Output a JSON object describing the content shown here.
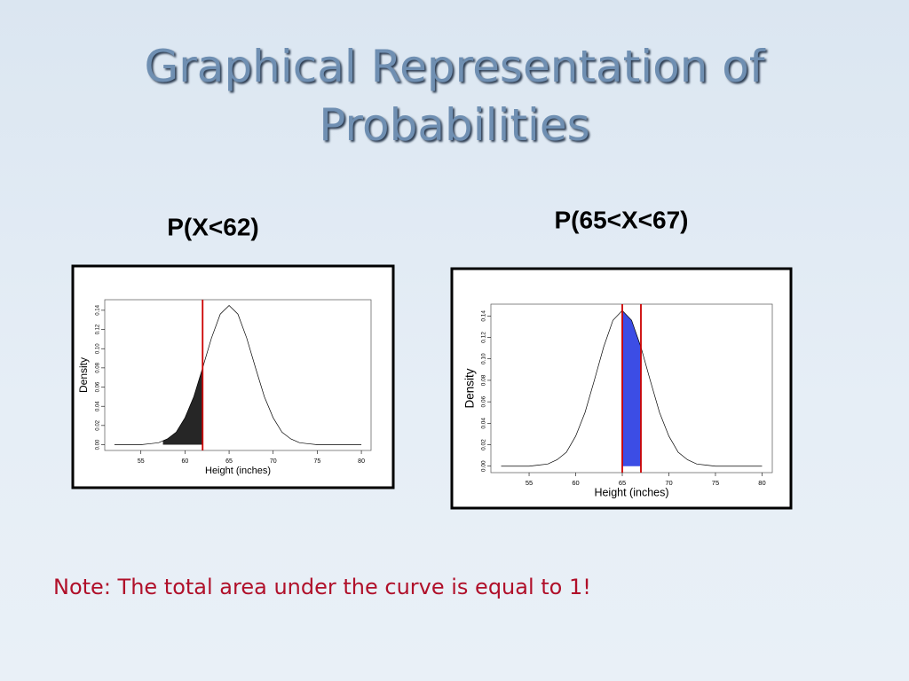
{
  "title": "Graphical Representation of Probabilities",
  "note": "Note: The total area under the curve is equal to 1!",
  "chart_data": [
    {
      "type": "line",
      "title": "P(X<62)",
      "x_label": "Height (inches)",
      "y_label": "Density",
      "x": [
        52,
        53,
        54,
        55,
        56,
        57,
        58,
        59,
        60,
        61,
        62,
        63,
        64,
        65,
        66,
        67,
        68,
        69,
        70,
        71,
        72,
        73,
        74,
        75,
        76,
        77,
        78,
        79,
        80
      ],
      "values": [
        0,
        0,
        0,
        0,
        0.001,
        0.002,
        0.006,
        0.013,
        0.028,
        0.05,
        0.08,
        0.111,
        0.136,
        0.145,
        0.136,
        0.111,
        0.08,
        0.05,
        0.028,
        0.013,
        0.006,
        0.002,
        0.001,
        0,
        0,
        0,
        0,
        0,
        0
      ],
      "color": "#000000",
      "xlim": [
        50.9,
        81.1
      ],
      "ylim": [
        -0.006,
        0.151
      ],
      "xticks": [
        55,
        60,
        65,
        70,
        75,
        80
      ],
      "yticks": [
        {
          "value": 0,
          "label": "0.00"
        },
        0.02,
        0.04,
        0.06,
        0.08,
        {
          "value": 0.1,
          "label": "0.10"
        },
        0.12,
        0.14
      ],
      "vlines": [
        62
      ],
      "vline_color": "#cc0000",
      "shade": [
        57.5,
        62
      ],
      "shade_color": "#000000"
    },
    {
      "type": "line",
      "title": "P(65<X<67)",
      "x_label": "Height (inches)",
      "y_label": "Density",
      "x": [
        52,
        53,
        54,
        55,
        56,
        57,
        58,
        59,
        60,
        61,
        62,
        63,
        64,
        65,
        66,
        67,
        68,
        69,
        70,
        71,
        72,
        73,
        74,
        75,
        76,
        77,
        78,
        79,
        80
      ],
      "values": [
        0,
        0,
        0,
        0,
        0.001,
        0.002,
        0.006,
        0.013,
        0.028,
        0.05,
        0.08,
        0.111,
        0.136,
        0.145,
        0.136,
        0.111,
        0.08,
        0.05,
        0.028,
        0.013,
        0.006,
        0.002,
        0.001,
        0,
        0,
        0,
        0,
        0,
        0
      ],
      "color": "#000000",
      "xlim": [
        50.9,
        81.1
      ],
      "ylim": [
        -0.006,
        0.151
      ],
      "xticks": [
        55,
        60,
        65,
        70,
        75,
        80
      ],
      "yticks": [
        {
          "value": 0,
          "label": "0.00"
        },
        0.02,
        0.04,
        0.06,
        0.08,
        {
          "value": 0.1,
          "label": "0.10"
        },
        0.12,
        0.14
      ],
      "vlines": [
        65,
        67
      ],
      "vline_color": "#cc0000",
      "shade": [
        65,
        67
      ],
      "shade_color": "#1a2ee0"
    }
  ]
}
